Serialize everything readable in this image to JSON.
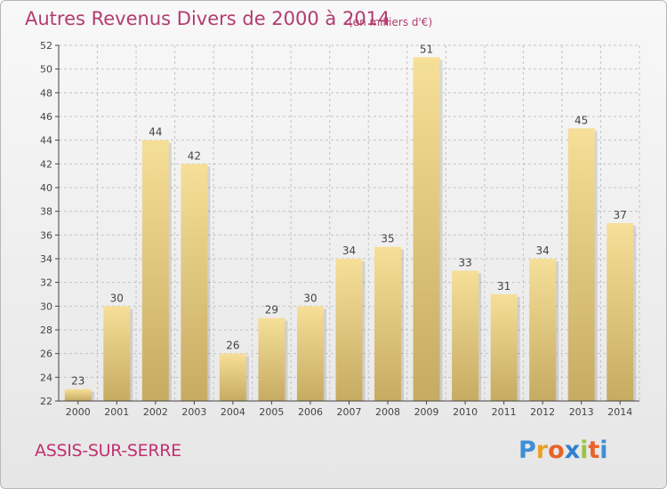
{
  "chart_data": {
    "type": "bar",
    "title": "Autres Revenus Divers de 2000 à 2014",
    "subtitle": "(en milliers d'€)",
    "categories": [
      "2000",
      "2001",
      "2002",
      "2003",
      "2004",
      "2005",
      "2006",
      "2007",
      "2008",
      "2009",
      "2010",
      "2011",
      "2012",
      "2013",
      "2014"
    ],
    "values": [
      23,
      30,
      44,
      42,
      26,
      29,
      30,
      34,
      35,
      51,
      33,
      31,
      34,
      45,
      37
    ],
    "ylim": [
      22,
      52
    ],
    "yticks": [
      22,
      24,
      26,
      28,
      30,
      32,
      34,
      36,
      38,
      40,
      42,
      44,
      46,
      48,
      50,
      52
    ],
    "grid": true,
    "xlabel": "",
    "ylabel": ""
  },
  "footer": {
    "place": "ASSIS-SUR-SERRE",
    "logo_letters": [
      "P",
      "r",
      "o",
      "x",
      "i",
      "t",
      "i"
    ],
    "logo_colors": [
      "#3f8fd6",
      "#e8a22a",
      "#e8632a",
      "#2f7fd0",
      "#9bc53d",
      "#e8632a",
      "#3f8fd6"
    ]
  },
  "colors": {
    "title": "#b23c6e",
    "bar_top": "#f6df98",
    "bar_bottom": "#c6ab62",
    "grid": "#c4c4c4",
    "axis": "#444444",
    "label": "#444444"
  }
}
